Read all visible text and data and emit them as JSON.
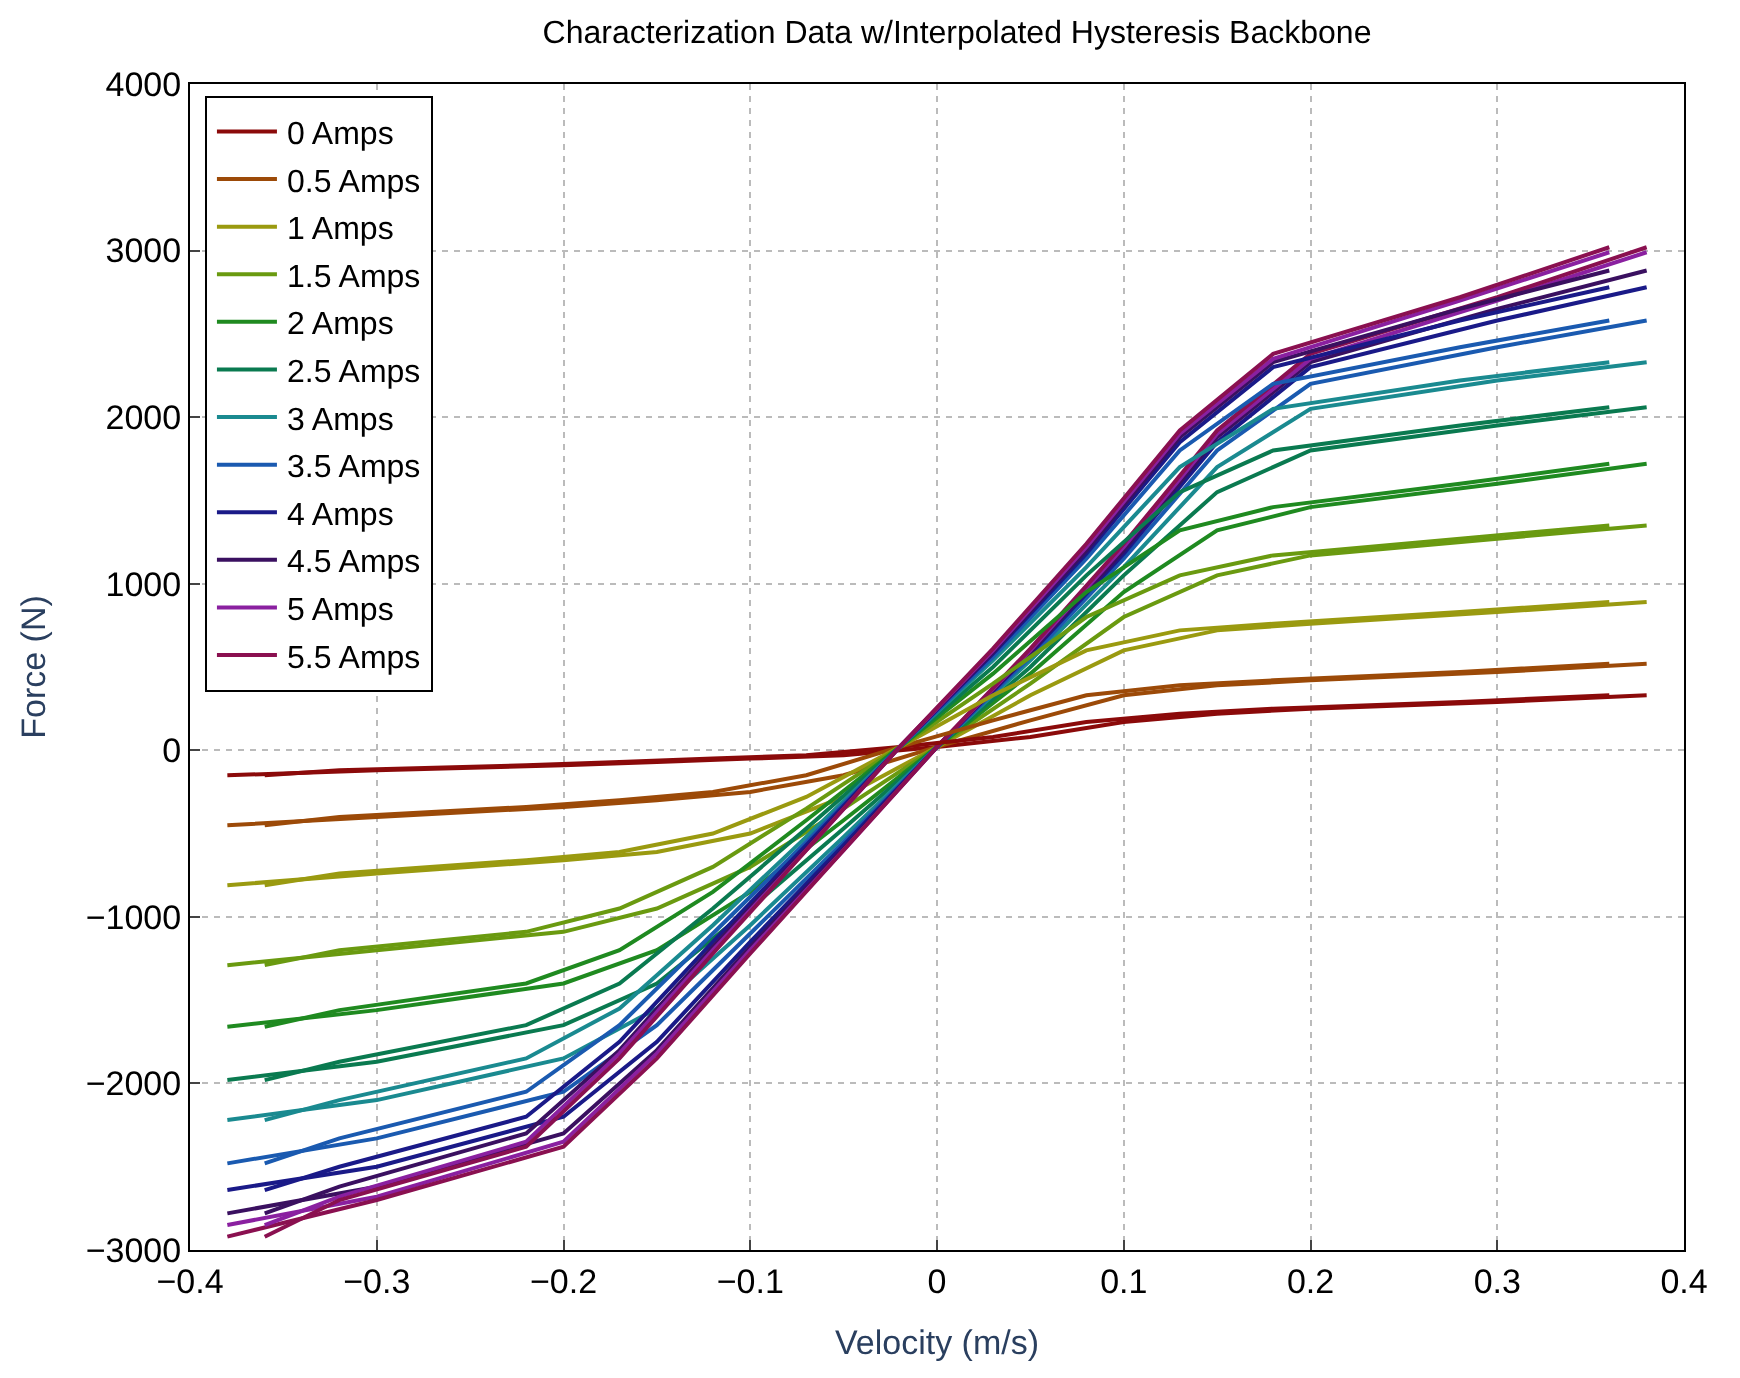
{
  "chart_data": {
    "type": "line",
    "title": "Characterization Data w/Interpolated Hysteresis Backbone",
    "xlabel": "Velocity (m/s)",
    "ylabel": "Force (N)",
    "x": [
      -0.38,
      -0.3,
      -0.2,
      -0.15,
      -0.1,
      -0.05,
      0,
      0.05,
      0.1,
      0.15,
      0.2,
      0.3,
      0.38
    ],
    "xlim": [
      -0.4,
      0.4
    ],
    "xticks": [
      -0.4,
      -0.3,
      -0.2,
      -0.1,
      0,
      0.1,
      0.2,
      0.3,
      0.4
    ],
    "ylim": [
      -3000,
      4000
    ],
    "yticks": [
      -3000,
      -2000,
      -1000,
      0,
      1000,
      2000,
      3000,
      4000
    ],
    "grid": true,
    "legend": "top left",
    "line_style": "solid",
    "marker": "none",
    "series": [
      {
        "name": "0 Amps",
        "color": "#8b0a0a",
        "values": [
          -150,
          -120,
          -90,
          -70,
          -50,
          -30,
          20,
          80,
          170,
          220,
          250,
          290,
          330
        ]
      },
      {
        "name": "0.5 Amps",
        "color": "#9c4a08",
        "values": [
          -450,
          -400,
          -340,
          -300,
          -250,
          -150,
          20,
          180,
          330,
          390,
          420,
          470,
          520
        ]
      },
      {
        "name": "1 Amps",
        "color": "#9a9a10",
        "values": [
          -810,
          -740,
          -660,
          -610,
          -500,
          -280,
          20,
          330,
          600,
          720,
          760,
          830,
          890
        ]
      },
      {
        "name": "1.5 Amps",
        "color": "#6a9a10",
        "values": [
          -1290,
          -1200,
          -1090,
          -950,
          -700,
          -350,
          20,
          400,
          800,
          1050,
          1170,
          1270,
          1350
        ]
      },
      {
        "name": "2 Amps",
        "color": "#1f8a20",
        "values": [
          -1660,
          -1560,
          -1400,
          -1200,
          -850,
          -420,
          20,
          460,
          950,
          1320,
          1460,
          1600,
          1720
        ]
      },
      {
        "name": "2.5 Amps",
        "color": "#0a7a50",
        "values": [
          -1980,
          -1870,
          -1650,
          -1400,
          -950,
          -470,
          20,
          500,
          1050,
          1550,
          1800,
          1950,
          2060
        ]
      },
      {
        "name": "3 Amps",
        "color": "#1a8a90",
        "values": [
          -2220,
          -2100,
          -1850,
          -1550,
          -1050,
          -520,
          20,
          540,
          1100,
          1700,
          2050,
          2220,
          2330
        ]
      },
      {
        "name": "3.5 Amps",
        "color": "#1a5ab0",
        "values": [
          -2480,
          -2330,
          -2050,
          -1650,
          -1100,
          -550,
          20,
          560,
          1150,
          1800,
          2200,
          2420,
          2580
        ]
      },
      {
        "name": "4 Amps",
        "color": "#1a1a88",
        "values": [
          -2640,
          -2500,
          -2200,
          -1750,
          -1150,
          -570,
          20,
          580,
          1180,
          1850,
          2300,
          2580,
          2780
        ]
      },
      {
        "name": "4.5 Amps",
        "color": "#3a1060",
        "values": [
          -2780,
          -2620,
          -2300,
          -1800,
          -1180,
          -590,
          20,
          590,
          1200,
          1880,
          2330,
          2650,
          2880
        ]
      },
      {
        "name": "5 Amps",
        "color": "#8a20a0",
        "values": [
          -2850,
          -2680,
          -2350,
          -1820,
          -1200,
          -600,
          20,
          600,
          1220,
          1900,
          2350,
          2700,
          2990
        ]
      },
      {
        "name": "5.5 Amps",
        "color": "#8a1050",
        "values": [
          -2920,
          -2700,
          -2380,
          -1850,
          -1220,
          -600,
          20,
          610,
          1240,
          1920,
          2380,
          2720,
          3020
        ]
      },
      {
        "color": "#8b0a0a",
        "x": [
          -0.36,
          -0.32,
          -0.22,
          -0.17,
          -0.12,
          -0.07,
          -0.02,
          0.03,
          0.08,
          0.13,
          0.18,
          0.28,
          0.36
        ],
        "values": [
          -150,
          -120,
          -90,
          -70,
          -50,
          -30,
          20,
          80,
          170,
          220,
          250,
          290,
          330
        ]
      },
      {
        "color": "#9c4a08",
        "x": [
          -0.36,
          -0.32,
          -0.22,
          -0.17,
          -0.12,
          -0.07,
          -0.02,
          0.03,
          0.08,
          0.13,
          0.18,
          0.28,
          0.36
        ],
        "values": [
          -450,
          -400,
          -340,
          -300,
          -250,
          -150,
          20,
          180,
          330,
          390,
          420,
          470,
          520
        ]
      },
      {
        "color": "#9a9a10",
        "x": [
          -0.36,
          -0.32,
          -0.22,
          -0.17,
          -0.12,
          -0.07,
          -0.02,
          0.03,
          0.08,
          0.13,
          0.18,
          0.28,
          0.36
        ],
        "values": [
          -810,
          -740,
          -660,
          -610,
          -500,
          -280,
          20,
          330,
          600,
          720,
          760,
          830,
          890
        ]
      },
      {
        "color": "#6a9a10",
        "x": [
          -0.36,
          -0.32,
          -0.22,
          -0.17,
          -0.12,
          -0.07,
          -0.02,
          0.03,
          0.08,
          0.13,
          0.18,
          0.28,
          0.36
        ],
        "values": [
          -1290,
          -1200,
          -1090,
          -950,
          -700,
          -350,
          20,
          400,
          800,
          1050,
          1170,
          1270,
          1350
        ]
      },
      {
        "color": "#1f8a20",
        "x": [
          -0.36,
          -0.32,
          -0.22,
          -0.17,
          -0.12,
          -0.07,
          -0.02,
          0.03,
          0.08,
          0.13,
          0.18,
          0.28,
          0.36
        ],
        "values": [
          -1660,
          -1560,
          -1400,
          -1200,
          -850,
          -420,
          20,
          460,
          950,
          1320,
          1460,
          1600,
          1720
        ]
      },
      {
        "color": "#0a7a50",
        "x": [
          -0.36,
          -0.32,
          -0.22,
          -0.17,
          -0.12,
          -0.07,
          -0.02,
          0.03,
          0.08,
          0.13,
          0.18,
          0.28,
          0.36
        ],
        "values": [
          -1980,
          -1870,
          -1650,
          -1400,
          -950,
          -470,
          20,
          500,
          1050,
          1550,
          1800,
          1950,
          2060
        ]
      },
      {
        "color": "#1a8a90",
        "x": [
          -0.36,
          -0.32,
          -0.22,
          -0.17,
          -0.12,
          -0.07,
          -0.02,
          0.03,
          0.08,
          0.13,
          0.18,
          0.28,
          0.36
        ],
        "values": [
          -2220,
          -2100,
          -1850,
          -1550,
          -1050,
          -520,
          20,
          540,
          1100,
          1700,
          2050,
          2220,
          2330
        ]
      },
      {
        "color": "#1a5ab0",
        "x": [
          -0.36,
          -0.32,
          -0.22,
          -0.17,
          -0.12,
          -0.07,
          -0.02,
          0.03,
          0.08,
          0.13,
          0.18,
          0.28,
          0.36
        ],
        "values": [
          -2480,
          -2330,
          -2050,
          -1650,
          -1100,
          -550,
          20,
          560,
          1150,
          1800,
          2200,
          2420,
          2580
        ]
      },
      {
        "color": "#1a1a88",
        "x": [
          -0.36,
          -0.32,
          -0.22,
          -0.17,
          -0.12,
          -0.07,
          -0.02,
          0.03,
          0.08,
          0.13,
          0.18,
          0.28,
          0.36
        ],
        "values": [
          -2640,
          -2500,
          -2200,
          -1750,
          -1150,
          -570,
          20,
          580,
          1180,
          1850,
          2300,
          2580,
          2780
        ]
      },
      {
        "color": "#3a1060",
        "x": [
          -0.36,
          -0.32,
          -0.22,
          -0.17,
          -0.12,
          -0.07,
          -0.02,
          0.03,
          0.08,
          0.13,
          0.18,
          0.28,
          0.36
        ],
        "values": [
          -2780,
          -2620,
          -2300,
          -1800,
          -1180,
          -590,
          20,
          590,
          1200,
          1880,
          2330,
          2650,
          2880
        ]
      },
      {
        "color": "#8a20a0",
        "x": [
          -0.36,
          -0.32,
          -0.22,
          -0.17,
          -0.12,
          -0.07,
          -0.02,
          0.03,
          0.08,
          0.13,
          0.18,
          0.28,
          0.36
        ],
        "values": [
          -2850,
          -2680,
          -2350,
          -1820,
          -1200,
          -600,
          20,
          600,
          1220,
          1900,
          2350,
          2700,
          2990
        ]
      },
      {
        "color": "#8a1050",
        "x": [
          -0.36,
          -0.32,
          -0.22,
          -0.17,
          -0.12,
          -0.07,
          -0.02,
          0.03,
          0.08,
          0.13,
          0.18,
          0.28,
          0.36
        ],
        "values": [
          -2920,
          -2700,
          -2380,
          -1850,
          -1220,
          -600,
          20,
          610,
          1240,
          1920,
          2380,
          2720,
          3020
        ]
      }
    ]
  }
}
